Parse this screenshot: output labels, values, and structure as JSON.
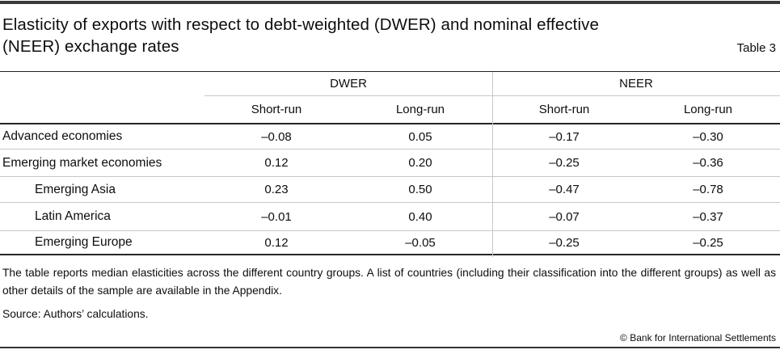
{
  "page": {
    "title_line1": "Elasticity of exports with respect to debt-weighted (DWER) and nominal effective",
    "title_line2": "(NEER) exchange rates",
    "table_label": "Table 3",
    "copyright": "© Bank for International Settlements"
  },
  "table": {
    "column_groups": [
      {
        "label": "DWER"
      },
      {
        "label": "NEER"
      }
    ],
    "sub_columns": [
      "Short-run",
      "Long-run",
      "Short-run",
      "Long-run"
    ],
    "rows": [
      {
        "label": "Advanced economies",
        "values": [
          "–0.08",
          "0.05",
          "–0.17",
          "–0.30"
        ]
      },
      {
        "label": "Emerging market economies",
        "values": [
          "0.12",
          "0.20",
          "–0.25",
          "–0.36"
        ]
      },
      {
        "label": "Emerging Asia",
        "values": [
          "0.23",
          "0.50",
          "–0.47",
          "–0.78"
        ]
      },
      {
        "label": "Latin America",
        "values": [
          "–0.01",
          "0.40",
          "–0.07",
          "–0.37"
        ]
      },
      {
        "label": "Emerging Europe",
        "values": [
          "0.12",
          "–0.05",
          "–0.25",
          "–0.25"
        ]
      }
    ]
  },
  "notes": {
    "body": "The table reports median elasticities across the different country groups. A list of countries (including their classification into the different groups) as well as other details of the sample are available in the Appendix.",
    "source": "Source: Authors’ calculations."
  },
  "colors": {
    "rule_dark": "#3a3a3a",
    "table_thick_line": "#262626",
    "grid_line": "#c8c8c8",
    "text": "#0d0d0d"
  }
}
